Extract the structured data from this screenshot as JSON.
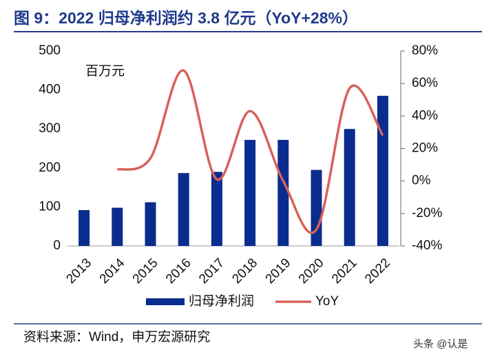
{
  "chart_data": {
    "type": "bar_line",
    "title": "图 9：2022 归母净利润约 3.8 亿元（YoY+28%）",
    "unit_label": "百万元",
    "source": "资料来源：Wind，申万宏源研究",
    "watermark": "头条 @认是",
    "categories": [
      "2013",
      "2014",
      "2015",
      "2016",
      "2017",
      "2018",
      "2019",
      "2020",
      "2021",
      "2022"
    ],
    "series": [
      {
        "name": "归母净利润",
        "color": "#0b2c8f",
        "type": "bar",
        "values": [
          92,
          98,
          112,
          187,
          190,
          272,
          272,
          195,
          300,
          385
        ]
      },
      {
        "name": "YoY",
        "color": "#d9605a",
        "type": "line",
        "axis": "y2",
        "values": [
          null,
          7,
          14,
          68,
          1,
          43,
          0,
          -30,
          57,
          28
        ]
      }
    ],
    "ylim": [
      0,
      500
    ],
    "yticks": [
      0,
      100,
      200,
      300,
      400,
      500
    ],
    "y2lim": [
      -40,
      80
    ],
    "y2ticks": [
      {
        "value": -40,
        "label": "-40%"
      },
      {
        "value": -20,
        "label": "-20%"
      },
      {
        "value": 0,
        "label": "0%"
      },
      {
        "value": 20,
        "label": "20%"
      },
      {
        "value": 40,
        "label": "40%"
      },
      {
        "value": 60,
        "label": "60%"
      },
      {
        "value": 80,
        "label": "80%"
      }
    ]
  }
}
